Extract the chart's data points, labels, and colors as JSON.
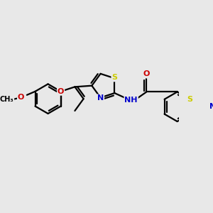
{
  "bg_color": "#e8e8e8",
  "bond_lw": 1.6,
  "font_size": 8.0,
  "fig_w": 3.0,
  "fig_h": 3.0,
  "dpi": 100,
  "colors": {
    "C": "#000000",
    "N": "#0000cc",
    "O": "#cc0000",
    "S": "#cccc00",
    "bond": "#000000"
  },
  "scale": 1.0
}
